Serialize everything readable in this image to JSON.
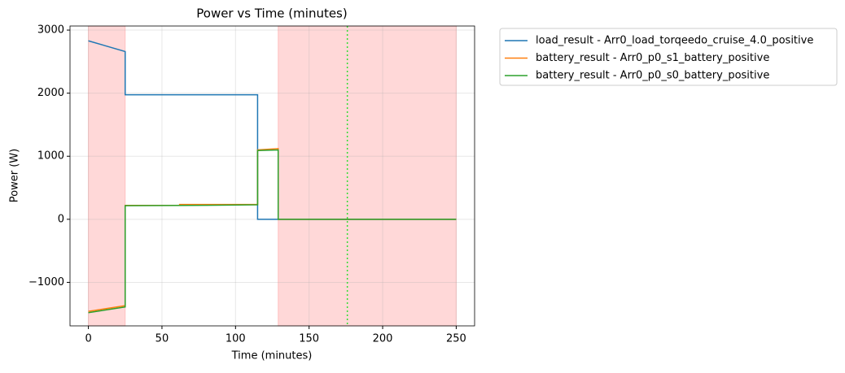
{
  "chart_data": {
    "type": "line",
    "title": "Power vs Time (minutes)",
    "x_label": "Time (minutes)",
    "y_label": "Power (W)",
    "series": [
      {
        "name": "load_result - Arr0_load_torqeedo_cruise_4.0_positive",
        "color": "#1f77b4",
        "x": [
          0,
          25,
          25,
          115,
          115,
          250
        ],
        "values": [
          2830,
          2660,
          1975,
          1975,
          0,
          0
        ]
      },
      {
        "name": "battery_result - Arr0_p0_s1_battery_positive",
        "color": "#ff7f0e",
        "x": [
          0,
          25,
          25,
          62,
          62,
          115,
          115,
          129,
          129,
          250
        ],
        "values": [
          -1460,
          -1370,
          220,
          220,
          235,
          235,
          1100,
          1120,
          0,
          0
        ]
      },
      {
        "name": "battery_result - Arr0_p0_s0_battery_positive",
        "color": "#2ca02c",
        "x": [
          0,
          25,
          25,
          69,
          115,
          115,
          129,
          129,
          250
        ],
        "values": [
          -1480,
          -1390,
          215,
          220,
          230,
          1090,
          1100,
          0,
          0
        ]
      }
    ],
    "shaded_regions": [
      [
        0,
        25
      ],
      [
        129,
        250
      ]
    ],
    "shade_color": "#ff9999",
    "vlines": [
      {
        "x": 176,
        "color": "#33dd33"
      }
    ],
    "xlim": [
      -12.5,
      262.5
    ],
    "ylim": [
      -1690,
      3065
    ],
    "xticks": [
      0,
      50,
      100,
      150,
      200,
      250
    ],
    "yticks": [
      {
        "value": -1000,
        "label": "−1000"
      },
      0,
      1000,
      2000,
      3000
    ],
    "grid": true,
    "legend_position": "outside-upper-right"
  }
}
